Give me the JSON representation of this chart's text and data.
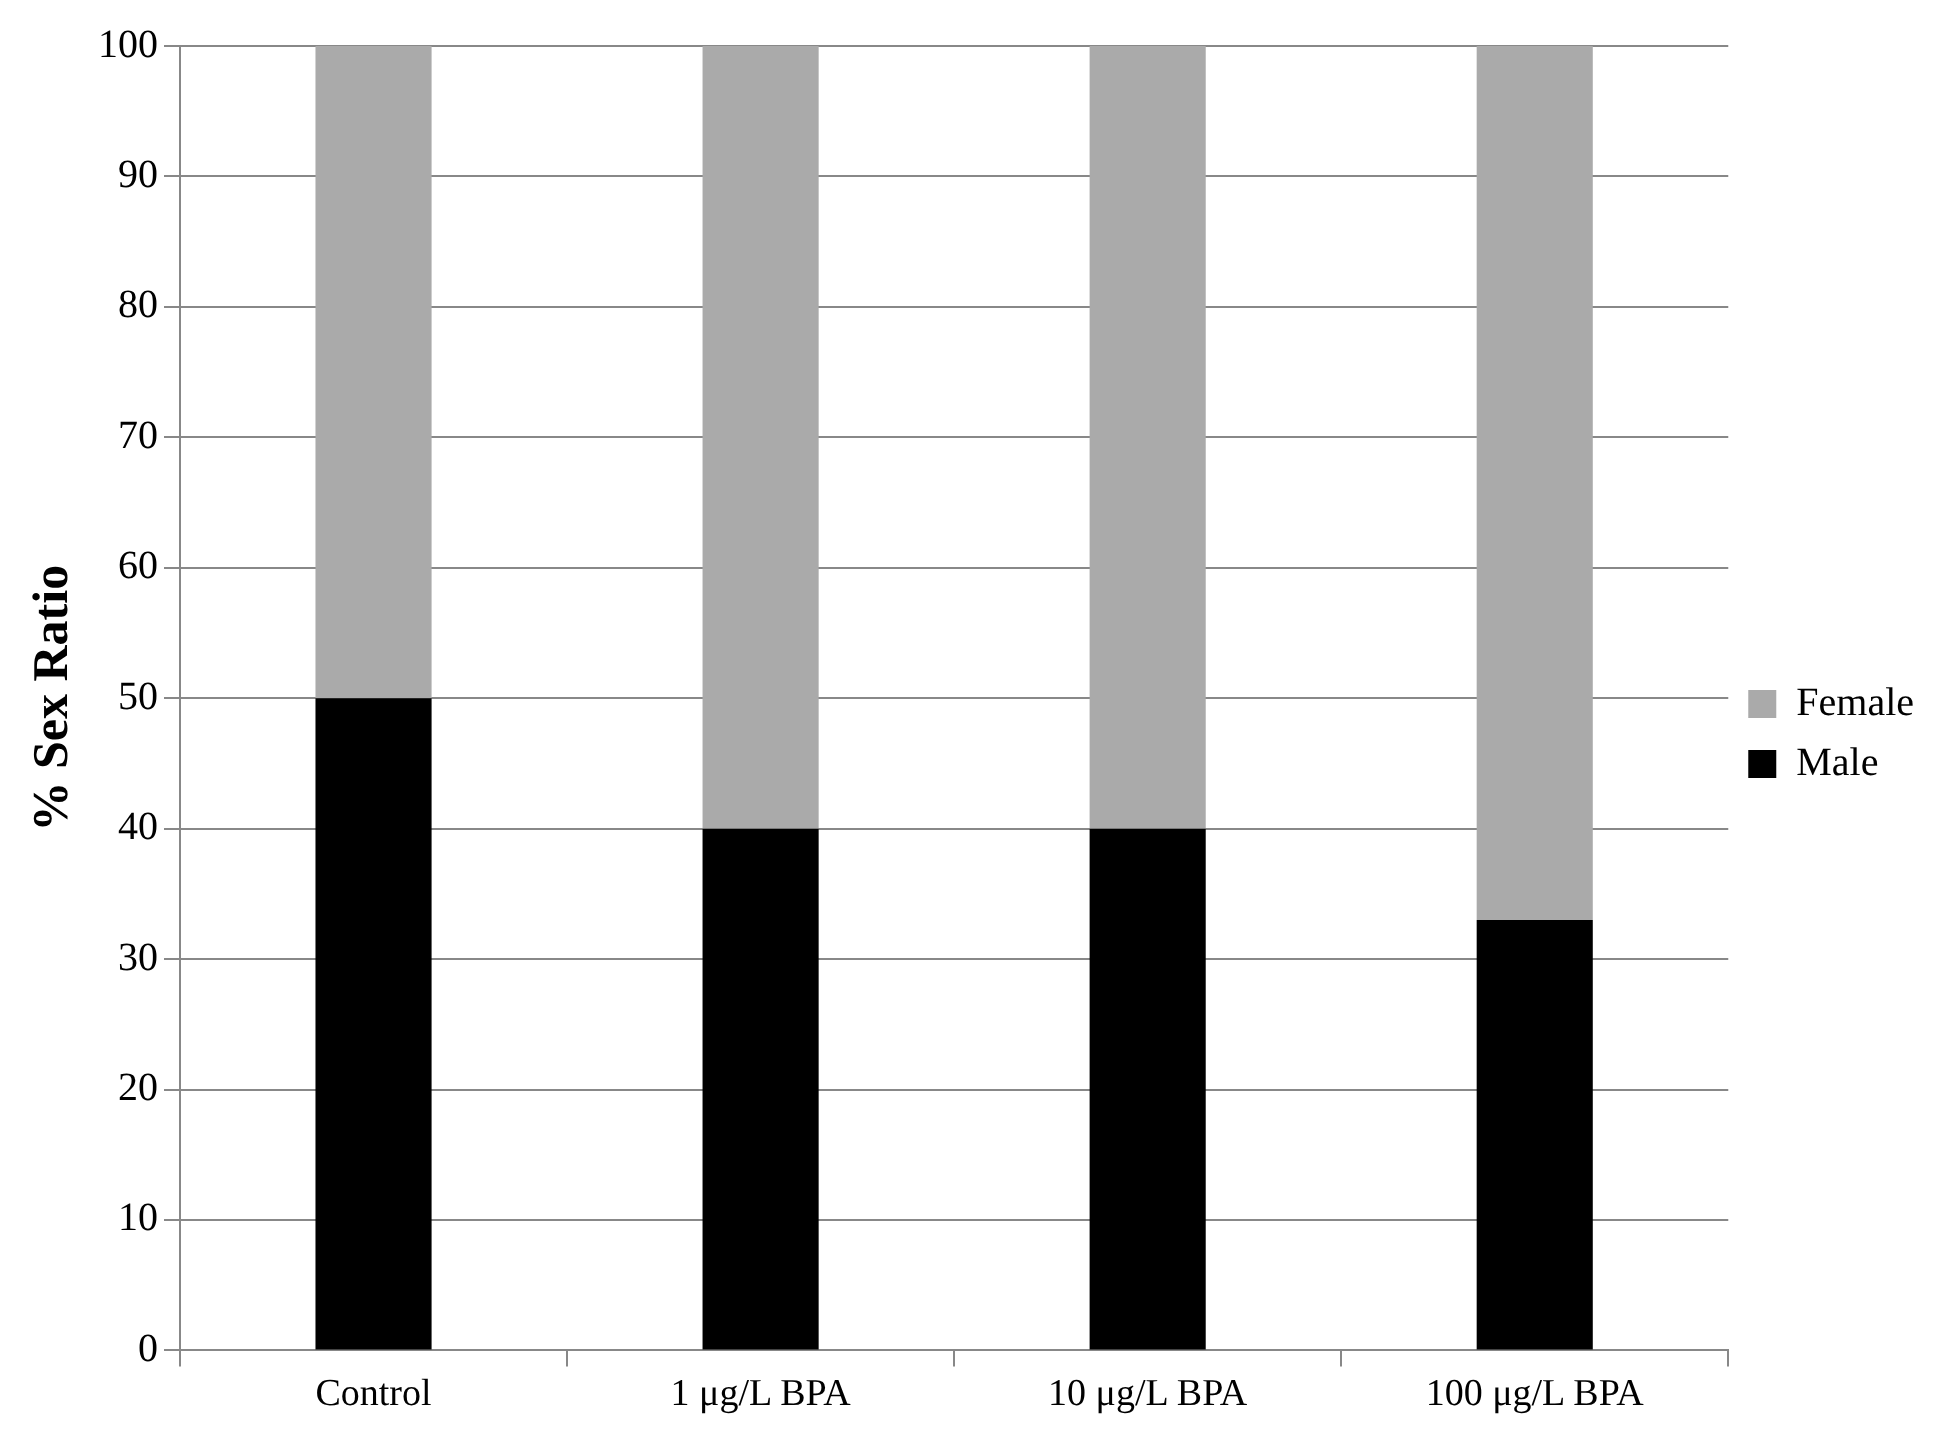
{
  "chart_data": {
    "type": "bar",
    "stacked": true,
    "ylabel": "% Sex Ratio",
    "categories": [
      "Control",
      "1 μg/L BPA",
      "10 μg/L BPA",
      "100 μg/L BPA"
    ],
    "series": [
      {
        "name": "Male",
        "color": "#000000",
        "values": [
          50,
          40,
          40,
          33
        ]
      },
      {
        "name": "Female",
        "color": "#aaaaaa",
        "values": [
          50,
          60,
          60,
          67
        ]
      }
    ],
    "ylim": [
      0,
      100
    ],
    "yticks": [
      0,
      10,
      20,
      30,
      40,
      50,
      60,
      70,
      80,
      90,
      100
    ],
    "grid": "y",
    "legend": "right"
  }
}
